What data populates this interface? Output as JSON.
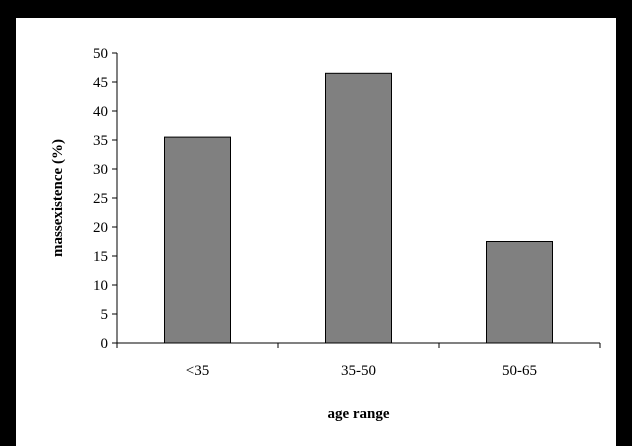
{
  "chart_data": {
    "type": "bar",
    "categories": [
      "<35",
      "35-50",
      "50-65"
    ],
    "values": [
      35.5,
      46.5,
      17.5
    ],
    "title": "",
    "xlabel": "age range",
    "ylabel": "massexistence (%)",
    "ylim": [
      0,
      50
    ],
    "yticks": [
      "0",
      "5",
      "10",
      "15",
      "20",
      "25",
      "30",
      "35",
      "40",
      "45",
      "50"
    ],
    "grid": false,
    "legend": "none",
    "bar_color": "#808080",
    "bar_border_color": "#000000"
  }
}
